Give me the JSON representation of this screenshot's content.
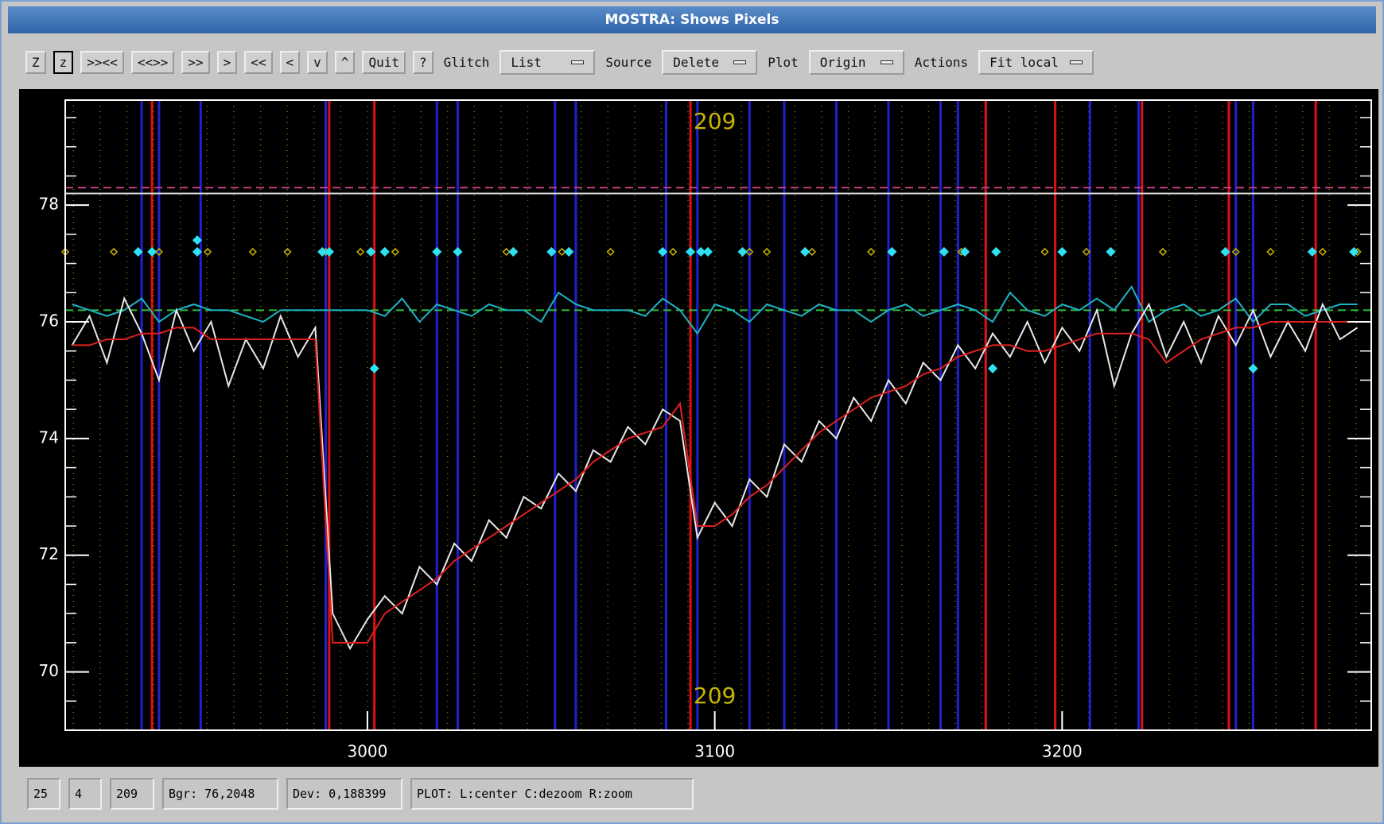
{
  "window": {
    "title": "MOSTRA: Shows Pixels"
  },
  "toolbar": {
    "buttons": [
      "Z",
      "z",
      ">><<",
      "<<>>",
      ">>",
      ">",
      "<<",
      "<",
      "v",
      "^",
      "Quit",
      "?"
    ],
    "menus": [
      {
        "label": "Glitch",
        "value": "List"
      },
      {
        "label": "Source",
        "value": "Delete"
      },
      {
        "label": "Plot",
        "value": "Origin"
      },
      {
        "label": "Actions",
        "value": "Fit local"
      }
    ]
  },
  "chart_data": {
    "type": "line",
    "annotations": [
      "209",
      "209"
    ],
    "xlim": [
      2913,
      3289
    ],
    "ylim": [
      69,
      79.8
    ],
    "xticks": [
      3000,
      3100,
      3200
    ],
    "yticks": [
      70,
      72,
      74,
      76,
      78
    ],
    "x": [
      2915,
      2920,
      2925,
      2930,
      2935,
      2940,
      2945,
      2950,
      2955,
      2960,
      2965,
      2970,
      2975,
      2980,
      2985,
      2990,
      2995,
      3000,
      3005,
      3010,
      3015,
      3020,
      3025,
      3030,
      3035,
      3040,
      3045,
      3050,
      3055,
      3060,
      3065,
      3070,
      3075,
      3080,
      3085,
      3090,
      3095,
      3100,
      3105,
      3110,
      3115,
      3120,
      3125,
      3130,
      3135,
      3140,
      3145,
      3150,
      3155,
      3160,
      3165,
      3170,
      3175,
      3180,
      3185,
      3190,
      3195,
      3200,
      3205,
      3210,
      3215,
      3220,
      3225,
      3230,
      3235,
      3240,
      3245,
      3250,
      3255,
      3260,
      3265,
      3270,
      3275,
      3280,
      3285
    ],
    "series": [
      {
        "color": "#1fb4c4",
        "values": [
          76.3,
          76.2,
          76.1,
          76.2,
          76.4,
          76.0,
          76.2,
          76.3,
          76.2,
          76.2,
          76.1,
          76.0,
          76.2,
          76.2,
          76.2,
          76.2,
          76.2,
          76.2,
          76.1,
          76.4,
          76.0,
          76.3,
          76.2,
          76.1,
          76.3,
          76.2,
          76.2,
          76.0,
          76.5,
          76.3,
          76.2,
          76.2,
          76.2,
          76.1,
          76.4,
          76.2,
          75.8,
          76.3,
          76.2,
          76.0,
          76.3,
          76.2,
          76.1,
          76.3,
          76.2,
          76.2,
          76.0,
          76.2,
          76.3,
          76.1,
          76.2,
          76.3,
          76.2,
          76.0,
          76.5,
          76.2,
          76.1,
          76.3,
          76.2,
          76.4,
          76.2,
          76.6,
          76.0,
          76.2,
          76.3,
          76.1,
          76.2,
          76.4,
          76.0,
          76.3,
          76.3,
          76.1,
          76.2,
          76.3,
          76.3
        ]
      },
      {
        "color": "#e8e8e8",
        "values": [
          75.6,
          76.1,
          75.3,
          76.4,
          75.8,
          75.0,
          76.2,
          75.5,
          76.0,
          74.9,
          75.7,
          75.2,
          76.1,
          75.4,
          75.9,
          71.0,
          70.4,
          70.9,
          71.3,
          71.0,
          71.8,
          71.5,
          72.2,
          71.9,
          72.6,
          72.3,
          73.0,
          72.8,
          73.4,
          73.1,
          73.8,
          73.6,
          74.2,
          73.9,
          74.5,
          74.3,
          72.3,
          72.9,
          72.5,
          73.3,
          73.0,
          73.9,
          73.6,
          74.3,
          74.0,
          74.7,
          74.3,
          75.0,
          74.6,
          75.3,
          75.0,
          75.6,
          75.2,
          75.8,
          75.4,
          76.0,
          75.3,
          75.9,
          75.5,
          76.2,
          74.9,
          75.8,
          76.3,
          75.4,
          76.0,
          75.3,
          76.1,
          75.6,
          76.2,
          75.4,
          76.0,
          75.5,
          76.3,
          75.7,
          75.9
        ]
      },
      {
        "color": "#e02020",
        "values": [
          75.6,
          75.6,
          75.7,
          75.7,
          75.8,
          75.8,
          75.9,
          75.9,
          75.7,
          75.7,
          75.7,
          75.7,
          75.7,
          75.7,
          75.7,
          70.5,
          70.5,
          70.5,
          71.0,
          71.2,
          71.4,
          71.6,
          71.9,
          72.1,
          72.3,
          72.5,
          72.7,
          72.9,
          73.1,
          73.3,
          73.6,
          73.8,
          74.0,
          74.1,
          74.2,
          74.6,
          72.5,
          72.5,
          72.7,
          73.0,
          73.2,
          73.5,
          73.8,
          74.1,
          74.3,
          74.5,
          74.7,
          74.8,
          74.9,
          75.1,
          75.2,
          75.4,
          75.5,
          75.6,
          75.6,
          75.5,
          75.5,
          75.6,
          75.7,
          75.8,
          75.8,
          75.8,
          75.7,
          75.3,
          75.5,
          75.7,
          75.8,
          75.9,
          75.9,
          76.0,
          76.0,
          76.0,
          76.0,
          76.0,
          76.0
        ]
      }
    ],
    "hlines": [
      {
        "color": "#c04080",
        "value": 78.3,
        "dash": true
      },
      {
        "color": "#d8d8d8",
        "value": 78.2,
        "dash": false
      },
      {
        "color": "#2ec040",
        "value": 76.2,
        "dash": true
      }
    ],
    "vlines": [
      {
        "color": "#2020d0",
        "x": [
          2935,
          2940,
          2952,
          2988,
          3020,
          3026,
          3054,
          3060,
          3086,
          3095,
          3110,
          3120,
          3135,
          3150,
          3165,
          3170,
          3178,
          3208,
          3222,
          3250,
          3255
        ]
      },
      {
        "color": "#e01010",
        "x": [
          2938,
          2989,
          3002,
          3093,
          3178,
          3198,
          3223,
          3248,
          3273
        ]
      }
    ],
    "markers": [
      {
        "color": "#c8b400",
        "x": [
          2913,
          2927,
          2940,
          2954,
          2967,
          2977,
          2988,
          2998,
          3008,
          3020,
          3040,
          3056,
          3070,
          3088,
          3110,
          3115,
          3128,
          3145,
          3171,
          3195,
          3207,
          3229,
          3250,
          3260,
          3275,
          3285
        ],
        "y": [
          77.2,
          77.2,
          77.2,
          77.2,
          77.2,
          77.2,
          77.2,
          77.2,
          77.2,
          77.2,
          77.2,
          77.2,
          77.2,
          77.2,
          77.2,
          77.2,
          77.2,
          77.2,
          77.2,
          77.2,
          77.2,
          77.2,
          77.2,
          77.2,
          77.2,
          77.2
        ]
      },
      {
        "color": "#30e0f0",
        "x": [
          2934,
          2938,
          2951,
          2987,
          2989,
          3001,
          3005,
          3020,
          3026,
          3042,
          3053,
          3058,
          3085,
          3093,
          3096,
          3098,
          3108,
          3126,
          3151,
          3166,
          3172,
          3181,
          3200,
          3214,
          3247,
          3272,
          3284,
          2951,
          3002,
          3180,
          3255
        ],
        "y": [
          77.2,
          77.2,
          77.2,
          77.2,
          77.2,
          77.2,
          77.2,
          77.2,
          77.2,
          77.2,
          77.2,
          77.2,
          77.2,
          77.2,
          77.2,
          77.2,
          77.2,
          77.2,
          77.2,
          77.2,
          77.2,
          77.2,
          77.2,
          77.2,
          77.2,
          77.2,
          77.2,
          77.4,
          75.2,
          75.2,
          75.2
        ]
      }
    ]
  },
  "status": [
    "25",
    "4",
    "209",
    "Bgr: 76,2048",
    "Dev: 0,188399",
    "PLOT: L:center C:dezoom R:zoom"
  ]
}
